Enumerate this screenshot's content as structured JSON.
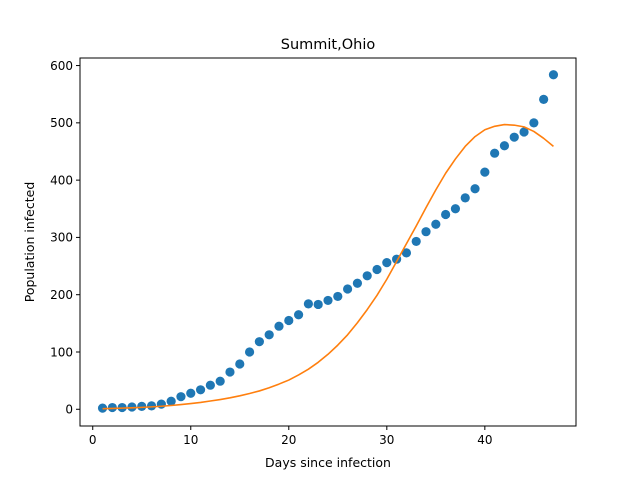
{
  "chart_data": {
    "type": "scatter",
    "title": "Summit,Ohio",
    "xlabel": "Days since infection",
    "ylabel": "Population infected",
    "xlim": [
      -1.3,
      49.3
    ],
    "ylim": [
      -29.2,
      613.2
    ],
    "xticks": [
      0,
      10,
      20,
      30,
      40
    ],
    "yticks": [
      0,
      100,
      200,
      300,
      400,
      500,
      600
    ],
    "grid": false,
    "series": [
      {
        "kind": "scatter",
        "color": "#1f77b4",
        "x": [
          1,
          2,
          3,
          4,
          5,
          6,
          7,
          8,
          9,
          10,
          11,
          12,
          13,
          14,
          15,
          16,
          17,
          18,
          19,
          20,
          21,
          22,
          23,
          24,
          25,
          26,
          27,
          28,
          29,
          30,
          31,
          32,
          33,
          34,
          35,
          36,
          37,
          38,
          39,
          40,
          41,
          42,
          43,
          44,
          45,
          46,
          47
        ],
        "y": [
          2,
          3,
          3,
          4,
          5,
          6,
          9,
          14,
          22,
          28,
          34,
          42,
          49,
          65,
          79,
          100,
          118,
          130,
          145,
          155,
          165,
          184,
          183,
          190,
          197,
          210,
          220,
          233,
          244,
          256,
          262,
          273,
          293,
          310,
          323,
          340,
          350,
          369,
          385,
          414,
          447,
          460,
          475,
          484,
          500,
          541,
          584
        ]
      },
      {
        "kind": "line",
        "color": "#ff7f0e",
        "x": [
          1,
          2,
          3,
          4,
          5,
          6,
          7,
          8,
          9,
          10,
          11,
          12,
          13,
          14,
          15,
          16,
          17,
          18,
          19,
          20,
          21,
          22,
          23,
          24,
          25,
          26,
          27,
          28,
          29,
          30,
          31,
          32,
          33,
          34,
          35,
          36,
          37,
          38,
          39,
          40,
          41,
          42,
          43,
          44,
          45,
          46,
          47
        ],
        "y": [
          1,
          1.5,
          2,
          2.6,
          3.3,
          4.2,
          5.3,
          6.6,
          8.2,
          10,
          12,
          14.4,
          17,
          20,
          23.5,
          27.5,
          32,
          37.5,
          44,
          51,
          60,
          70,
          82,
          96,
          112,
          130,
          151,
          174,
          199,
          227,
          258,
          289,
          320,
          352,
          383,
          412,
          437,
          459,
          476,
          488,
          494,
          497,
          496,
          493,
          485,
          473,
          459
        ]
      }
    ]
  }
}
